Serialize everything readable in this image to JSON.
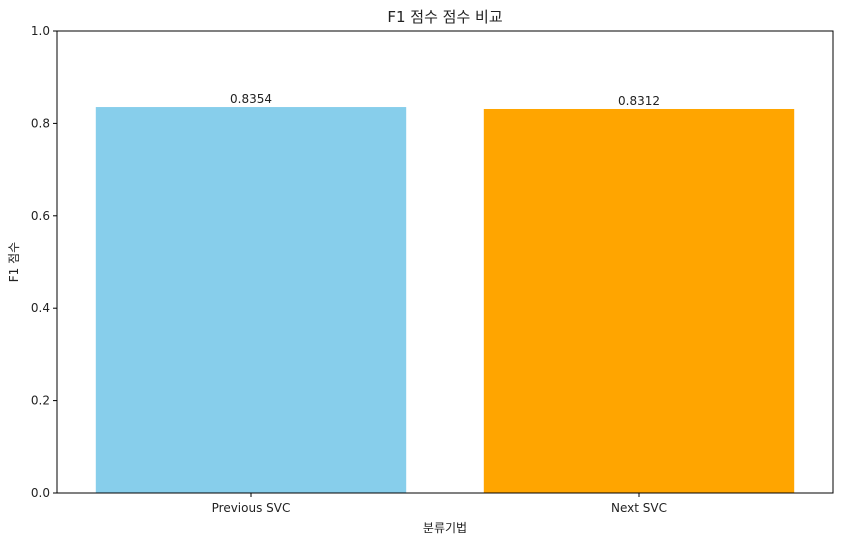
{
  "chart_data": {
    "type": "bar",
    "title": "F1 점수 점수 비교",
    "xlabel": "분류기법",
    "ylabel": "F1 점수",
    "categories": [
      "Previous SVC",
      "Next SVC"
    ],
    "values": [
      0.8354,
      0.8312
    ],
    "data_labels": [
      "0.8354",
      "0.8312"
    ],
    "colors": [
      "#87ceeb",
      "#ffa500"
    ],
    "ylim": [
      0,
      1.0
    ],
    "yticks": [
      0.0,
      0.2,
      0.4,
      0.6,
      0.8,
      1.0
    ],
    "ytick_labels": [
      "0.0",
      "0.2",
      "0.4",
      "0.6",
      "0.8",
      "1.0"
    ],
    "grid": false,
    "legend": "none"
  }
}
